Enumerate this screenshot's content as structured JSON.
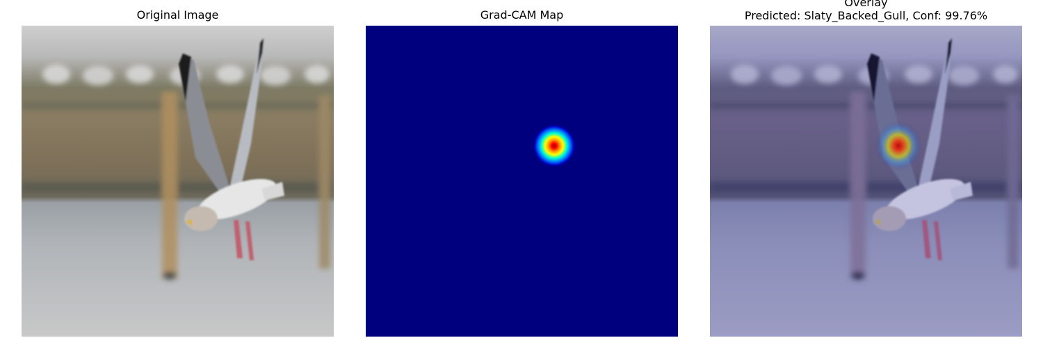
{
  "panels": {
    "original": {
      "title": "Original Image"
    },
    "gradcam": {
      "title": "Grad-CAM Map"
    },
    "overlay": {
      "title": "Overlay",
      "prediction": "Predicted: Slaty_Backed_Gull, Conf: 99.76%"
    }
  },
  "colors": {
    "cam_background": "#00007f",
    "cam_peak": "#b00000",
    "overlay_tint": "#2a2f9a"
  }
}
